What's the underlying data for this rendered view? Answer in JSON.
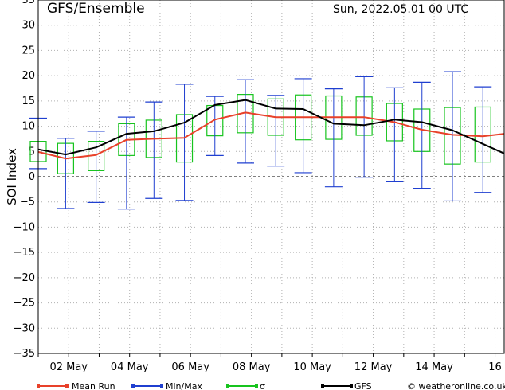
{
  "header": {
    "title": "GFS/Ensemble",
    "date_run": "Sun, 2022.05.01   00 UTC"
  },
  "legend": [
    {
      "label": "Mean Run",
      "color": "#e8412a"
    },
    {
      "label": "Min/Max",
      "color": "#1f3fd0"
    },
    {
      "label": "σ",
      "color": "#17c41e"
    },
    {
      "label": "GFS",
      "color": "#000000"
    }
  ],
  "credit": "© weatheronline.co.uk",
  "chart_data": {
    "type": "line",
    "ylabel": "SOI Index",
    "xlabel": "",
    "ylim": [
      -35,
      35
    ],
    "yticks": [
      35,
      30,
      25,
      20,
      15,
      10,
      5,
      0,
      -5,
      -10,
      -15,
      -20,
      -25,
      -30,
      -35
    ],
    "xlim": [
      1,
      16.3
    ],
    "xticks": [
      {
        "x": 2,
        "label": "02 May"
      },
      {
        "x": 4,
        "label": "04 May"
      },
      {
        "x": 6,
        "label": "06 May"
      },
      {
        "x": 8,
        "label": "08 May"
      },
      {
        "x": 10,
        "label": "10 May"
      },
      {
        "x": 12,
        "label": "12 May"
      },
      {
        "x": 14,
        "label": "14 May"
      },
      {
        "x": 16,
        "label": "16"
      }
    ],
    "x": [
      1,
      1.9,
      2.9,
      3.9,
      4.8,
      5.8,
      6.8,
      7.8,
      8.8,
      9.7,
      10.7,
      11.7,
      12.7,
      13.6,
      14.6,
      15.6,
      16.3
    ],
    "series": [
      {
        "name": "Mean Run",
        "color": "#e8412a",
        "values": [
          4.9,
          3.6,
          4.3,
          7.3,
          7.5,
          7.7,
          11.3,
          12.7,
          11.8,
          11.8,
          11.8,
          11.8,
          10.8,
          9.3,
          8.3,
          8.0,
          8.5
        ]
      },
      {
        "name": "GFS",
        "color": "#000000",
        "values": [
          5.4,
          4.4,
          5.8,
          8.5,
          9.0,
          10.7,
          14.2,
          15.2,
          13.5,
          13.4,
          10.5,
          10.2,
          11.3,
          10.8,
          9.2,
          6.5,
          4.6
        ]
      },
      {
        "name": "Min/Max",
        "color": "#1f3fd0",
        "min": [
          1.6,
          -6.3,
          -5.1,
          -6.4,
          -4.3,
          -4.7,
          4.2,
          2.7,
          2.1,
          0.8,
          -2.0,
          -0.1,
          -1.0,
          -2.3,
          -4.8,
          -3.1,
          null
        ],
        "max": [
          11.6,
          7.6,
          9.0,
          11.8,
          14.8,
          18.3,
          15.9,
          19.2,
          16.1,
          19.4,
          17.4,
          19.8,
          17.6,
          18.7,
          20.8,
          17.8,
          null
        ]
      },
      {
        "name": "σ",
        "color": "#17c41e",
        "low": [
          3.0,
          0.6,
          1.2,
          4.2,
          3.8,
          2.9,
          8.1,
          8.7,
          8.2,
          7.3,
          7.4,
          8.2,
          7.1,
          5.0,
          2.5,
          2.9,
          null
        ],
        "high": [
          7.0,
          6.6,
          7.0,
          10.5,
          11.2,
          12.3,
          14.1,
          16.3,
          15.4,
          16.2,
          16.0,
          15.8,
          14.5,
          13.4,
          13.7,
          13.8,
          null
        ]
      }
    ],
    "grid": true,
    "zero_line": "dashed"
  }
}
